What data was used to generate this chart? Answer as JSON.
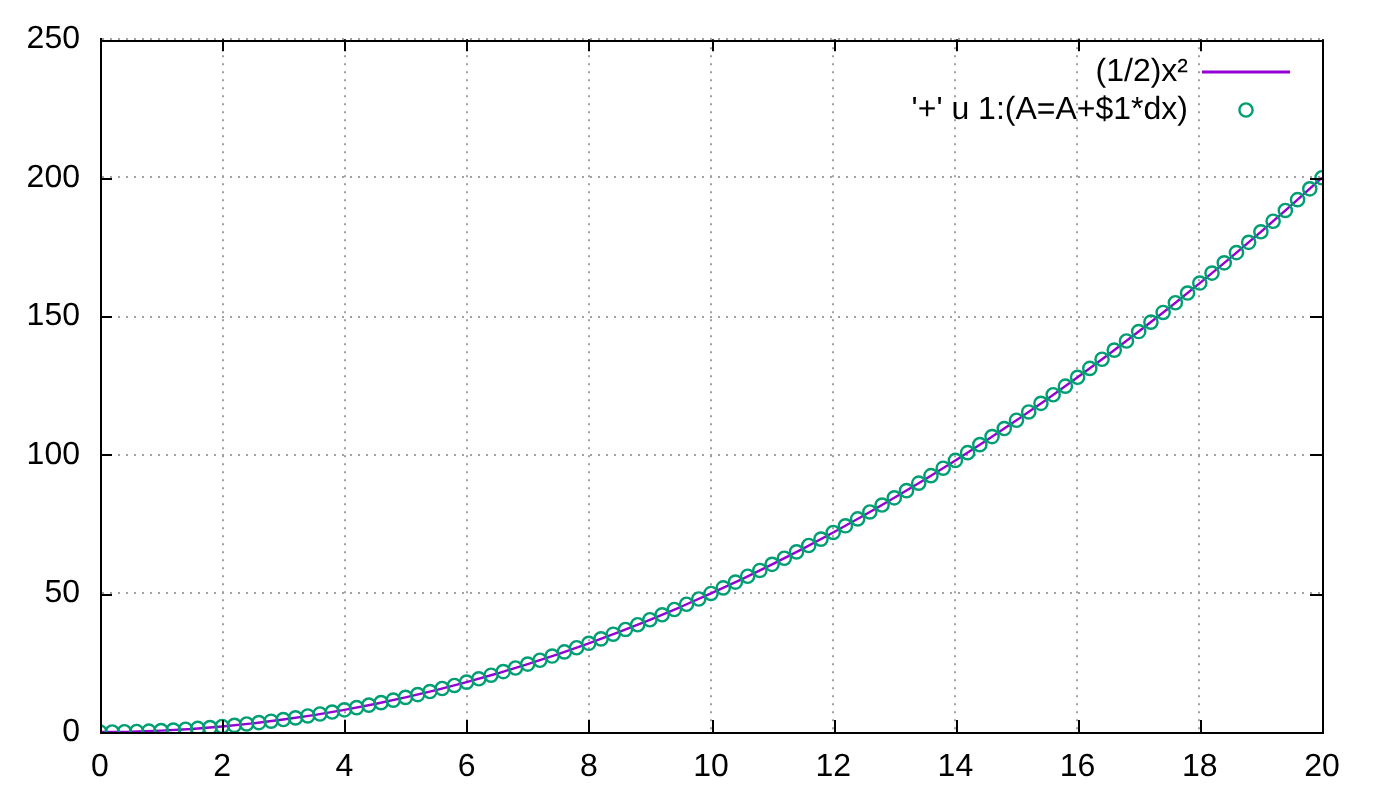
{
  "chart_data": {
    "type": "line",
    "xlim": [
      0,
      20
    ],
    "xticks": [
      0,
      2,
      4,
      6,
      8,
      10,
      12,
      14,
      16,
      18,
      20
    ],
    "ylim": [
      0,
      250
    ],
    "yticks": [
      0,
      50,
      100,
      150,
      200,
      250
    ],
    "grid": true,
    "legend": "top right",
    "series": [
      {
        "name": "(1/2)x²",
        "type": "line",
        "marker": "none",
        "color": "#9400d3",
        "x": [
          0,
          0.5,
          1,
          1.5,
          2,
          2.5,
          3,
          3.5,
          4,
          4.5,
          5,
          5.5,
          6,
          6.5,
          7,
          7.5,
          8,
          8.5,
          9,
          9.5,
          10,
          10.5,
          11,
          11.5,
          12,
          12.5,
          13,
          13.5,
          14,
          14.5,
          15,
          15.5,
          16,
          16.5,
          17,
          17.5,
          18,
          18.5,
          19,
          19.5,
          20
        ],
        "values": [
          0,
          0.1,
          0.5,
          1.1,
          2,
          3.1,
          4.5,
          6.1,
          8,
          10.1,
          12.5,
          15.1,
          18,
          21.1,
          24.5,
          28.1,
          32,
          36.1,
          40.5,
          45.1,
          50,
          55.1,
          60.5,
          66.1,
          72,
          78.1,
          84.5,
          91.1,
          98,
          105.1,
          112.5,
          120.1,
          128,
          136.1,
          144.5,
          153.1,
          162,
          171.1,
          180.5,
          190.1,
          200
        ]
      },
      {
        "name": "'+' u 1:(A=A+$1*dx)",
        "type": "scatter",
        "marker": "circle",
        "color": "#009e73",
        "x": [
          0,
          0.2,
          0.4,
          0.6,
          0.8,
          1,
          1.2,
          1.4,
          1.6,
          1.8,
          2,
          2.2,
          2.4,
          2.6,
          2.8,
          3,
          3.2,
          3.4,
          3.6,
          3.8,
          4,
          4.2,
          4.4,
          4.6,
          4.8,
          5,
          5.2,
          5.4,
          5.6,
          5.8,
          6,
          6.2,
          6.4,
          6.6,
          6.8,
          7,
          7.2,
          7.4,
          7.6,
          7.8,
          8,
          8.2,
          8.4,
          8.6,
          8.8,
          9,
          9.2,
          9.4,
          9.6,
          9.8,
          10,
          10.2,
          10.4,
          10.6,
          10.8,
          11,
          11.2,
          11.4,
          11.6,
          11.8,
          12,
          12.2,
          12.4,
          12.6,
          12.8,
          13,
          13.2,
          13.4,
          13.6,
          13.8,
          14,
          14.2,
          14.4,
          14.6,
          14.8,
          15,
          15.2,
          15.4,
          15.6,
          15.8,
          16,
          16.2,
          16.4,
          16.6,
          16.8,
          17,
          17.2,
          17.4,
          17.6,
          17.8,
          18,
          18.2,
          18.4,
          18.6,
          18.8,
          19,
          19.2,
          19.4,
          19.6,
          19.8,
          20
        ],
        "values": [
          0,
          0,
          0.1,
          0.2,
          0.3,
          0.5,
          0.7,
          1,
          1.3,
          1.6,
          2,
          2.4,
          2.9,
          3.4,
          3.9,
          4.5,
          5.1,
          5.8,
          6.5,
          7.2,
          8,
          8.8,
          9.7,
          10.6,
          11.5,
          12.5,
          13.5,
          14.6,
          15.7,
          16.8,
          18,
          19.2,
          20.5,
          21.8,
          23.1,
          24.5,
          25.9,
          27.4,
          28.9,
          30.4,
          32,
          33.6,
          35.3,
          37,
          38.7,
          40.5,
          42.3,
          44.2,
          46.1,
          48,
          50,
          52,
          54.1,
          56.2,
          58.3,
          60.5,
          62.7,
          65,
          67.3,
          69.6,
          72,
          74.4,
          76.9,
          79.4,
          81.9,
          84.5,
          87.1,
          89.8,
          92.5,
          95.2,
          98,
          100.8,
          103.7,
          106.6,
          109.5,
          112.5,
          115.5,
          118.6,
          121.7,
          124.8,
          128,
          131.2,
          134.5,
          137.8,
          141.1,
          144.5,
          147.9,
          151.4,
          154.9,
          158.4,
          162,
          165.6,
          169.3,
          173,
          176.7,
          180.5,
          184.3,
          188.2,
          192.1,
          196,
          200
        ]
      }
    ]
  }
}
